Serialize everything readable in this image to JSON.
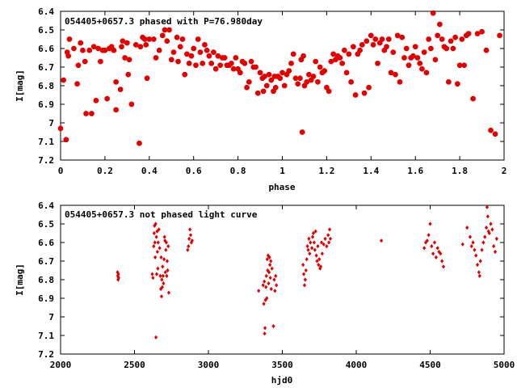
{
  "marker_color": "#e00000",
  "chart_data": [
    {
      "type": "scatter",
      "title": "054405+0657.3 phased with P=76.980day",
      "xlabel": "phase",
      "ylabel": "I[mag]",
      "xlim": [
        0,
        2
      ],
      "ylim": [
        7.2,
        6.4
      ],
      "y_inverted": true,
      "x_ticks": [
        "0",
        "0.2",
        "0.4",
        "0.6",
        "0.8",
        "1",
        "1.2",
        "1.4",
        "1.6",
        "1.8",
        "2"
      ],
      "y_ticks": [
        "6.4",
        "6.5",
        "6.6",
        "6.7",
        "6.8",
        "6.9",
        "7",
        "7.1",
        "7.2"
      ],
      "marker": "star",
      "points": [
        [
          0.0,
          7.03
        ],
        [
          0.013,
          6.77
        ],
        [
          0.025,
          7.09
        ],
        [
          0.03,
          6.62
        ],
        [
          0.035,
          6.64
        ],
        [
          0.04,
          6.55
        ],
        [
          0.06,
          6.6
        ],
        [
          0.075,
          6.79
        ],
        [
          0.08,
          6.69
        ],
        [
          0.09,
          6.57
        ],
        [
          0.1,
          6.61
        ],
        [
          0.11,
          6.67
        ],
        [
          0.115,
          6.95
        ],
        [
          0.13,
          6.61
        ],
        [
          0.14,
          6.95
        ],
        [
          0.15,
          6.59
        ],
        [
          0.16,
          6.88
        ],
        [
          0.17,
          6.6
        ],
        [
          0.18,
          6.67
        ],
        [
          0.19,
          6.61
        ],
        [
          0.2,
          6.61
        ],
        [
          0.21,
          6.87
        ],
        [
          0.22,
          6.6
        ],
        [
          0.23,
          6.59
        ],
        [
          0.24,
          6.61
        ],
        [
          0.25,
          6.78
        ],
        [
          0.25,
          6.93
        ],
        [
          0.27,
          6.82
        ],
        [
          0.275,
          6.59
        ],
        [
          0.28,
          6.56
        ],
        [
          0.29,
          6.65
        ],
        [
          0.3,
          6.57
        ],
        [
          0.305,
          6.74
        ],
        [
          0.31,
          6.66
        ],
        [
          0.32,
          6.9
        ],
        [
          0.34,
          6.58
        ],
        [
          0.355,
          7.11
        ],
        [
          0.36,
          6.59
        ],
        [
          0.37,
          6.54
        ],
        [
          0.38,
          6.55
        ],
        [
          0.385,
          6.58
        ],
        [
          0.39,
          6.76
        ],
        [
          0.4,
          6.55
        ],
        [
          0.42,
          6.55
        ],
        [
          0.43,
          6.65
        ],
        [
          0.445,
          6.61
        ],
        [
          0.46,
          6.53
        ],
        [
          0.47,
          6.5
        ],
        [
          0.48,
          6.56
        ],
        [
          0.49,
          6.5
        ],
        [
          0.5,
          6.66
        ],
        [
          0.51,
          6.62
        ],
        [
          0.525,
          6.54
        ],
        [
          0.53,
          6.67
        ],
        [
          0.54,
          6.59
        ],
        [
          0.55,
          6.55
        ],
        [
          0.56,
          6.74
        ],
        [
          0.57,
          6.63
        ],
        [
          0.58,
          6.68
        ],
        [
          0.59,
          6.64
        ],
        [
          0.6,
          6.6
        ],
        [
          0.61,
          6.69
        ],
        [
          0.62,
          6.55
        ],
        [
          0.63,
          6.62
        ],
        [
          0.64,
          6.68
        ],
        [
          0.65,
          6.58
        ],
        [
          0.66,
          6.61
        ],
        [
          0.67,
          6.64
        ],
        [
          0.68,
          6.68
        ],
        [
          0.69,
          6.62
        ],
        [
          0.7,
          6.71
        ],
        [
          0.71,
          6.64
        ],
        [
          0.72,
          6.69
        ],
        [
          0.73,
          6.65
        ],
        [
          0.74,
          6.65
        ],
        [
          0.75,
          6.69
        ],
        [
          0.76,
          6.69
        ],
        [
          0.77,
          6.68
        ],
        [
          0.78,
          6.71
        ],
        [
          0.79,
          6.65
        ],
        [
          0.8,
          6.71
        ],
        [
          0.81,
          6.73
        ],
        [
          0.82,
          6.67
        ],
        [
          0.83,
          6.68
        ],
        [
          0.84,
          6.81
        ],
        [
          0.85,
          6.78
        ],
        [
          0.86,
          6.67
        ],
        [
          0.87,
          6.7
        ],
        [
          0.88,
          6.7
        ],
        [
          0.89,
          6.84
        ],
        [
          0.9,
          6.73
        ],
        [
          0.91,
          6.76
        ],
        [
          0.915,
          6.83
        ],
        [
          0.92,
          6.75
        ],
        [
          0.93,
          6.8
        ],
        [
          0.94,
          6.74
        ],
        [
          0.95,
          6.77
        ],
        [
          0.96,
          6.83
        ],
        [
          0.965,
          6.75
        ],
        [
          0.97,
          6.81
        ],
        [
          0.98,
          6.75
        ],
        [
          0.99,
          6.76
        ],
        [
          1.0,
          6.73
        ],
        [
          1.01,
          6.8
        ],
        [
          1.02,
          6.74
        ],
        [
          1.03,
          6.72
        ],
        [
          1.04,
          6.68
        ],
        [
          1.05,
          6.63
        ],
        [
          1.06,
          6.76
        ],
        [
          1.07,
          6.79
        ],
        [
          1.08,
          6.76
        ],
        [
          1.085,
          6.66
        ],
        [
          1.09,
          7.05
        ],
        [
          1.095,
          6.64
        ],
        [
          1.1,
          6.8
        ],
        [
          1.11,
          6.78
        ],
        [
          1.12,
          6.74
        ],
        [
          1.13,
          6.77
        ],
        [
          1.14,
          6.75
        ],
        [
          1.15,
          6.67
        ],
        [
          1.16,
          6.78
        ],
        [
          1.17,
          6.7
        ],
        [
          1.18,
          6.73
        ],
        [
          1.19,
          6.72
        ],
        [
          1.2,
          6.81
        ],
        [
          1.21,
          6.83
        ],
        [
          1.22,
          6.67
        ],
        [
          1.23,
          6.63
        ],
        [
          1.24,
          6.66
        ],
        [
          1.25,
          6.64
        ],
        [
          1.26,
          6.65
        ],
        [
          1.27,
          6.68
        ],
        [
          1.28,
          6.61
        ],
        [
          1.29,
          6.73
        ],
        [
          1.3,
          6.63
        ],
        [
          1.31,
          6.78
        ],
        [
          1.32,
          6.59
        ],
        [
          1.33,
          6.85
        ],
        [
          1.34,
          6.63
        ],
        [
          1.35,
          6.61
        ],
        [
          1.36,
          6.58
        ],
        [
          1.37,
          6.84
        ],
        [
          1.38,
          6.56
        ],
        [
          1.39,
          6.81
        ],
        [
          1.4,
          6.53
        ],
        [
          1.41,
          6.58
        ],
        [
          1.42,
          6.55
        ],
        [
          1.43,
          6.68
        ],
        [
          1.44,
          6.57
        ],
        [
          1.45,
          6.55
        ],
        [
          1.46,
          6.61
        ],
        [
          1.47,
          6.59
        ],
        [
          1.48,
          6.55
        ],
        [
          1.49,
          6.73
        ],
        [
          1.5,
          6.62
        ],
        [
          1.51,
          6.74
        ],
        [
          1.52,
          6.53
        ],
        [
          1.53,
          6.78
        ],
        [
          1.54,
          6.54
        ],
        [
          1.55,
          6.65
        ],
        [
          1.56,
          6.6
        ],
        [
          1.57,
          6.69
        ],
        [
          1.58,
          6.65
        ],
        [
          1.59,
          6.64
        ],
        [
          1.6,
          6.59
        ],
        [
          1.61,
          6.65
        ],
        [
          1.62,
          6.68
        ],
        [
          1.63,
          6.71
        ],
        [
          1.64,
          6.62
        ],
        [
          1.65,
          6.73
        ],
        [
          1.66,
          6.55
        ],
        [
          1.67,
          6.6
        ],
        [
          1.68,
          6.41
        ],
        [
          1.69,
          6.66
        ],
        [
          1.7,
          6.53
        ],
        [
          1.71,
          6.47
        ],
        [
          1.72,
          6.55
        ],
        [
          1.73,
          6.59
        ],
        [
          1.74,
          6.6
        ],
        [
          1.75,
          6.78
        ],
        [
          1.76,
          6.56
        ],
        [
          1.77,
          6.6
        ],
        [
          1.78,
          6.54
        ],
        [
          1.79,
          6.79
        ],
        [
          1.8,
          6.69
        ],
        [
          1.81,
          6.55
        ],
        [
          1.82,
          6.69
        ],
        [
          1.83,
          6.53
        ],
        [
          1.84,
          6.52
        ],
        [
          1.86,
          6.87
        ],
        [
          1.88,
          6.52
        ],
        [
          1.9,
          6.51
        ],
        [
          1.92,
          6.61
        ],
        [
          1.94,
          7.04
        ],
        [
          1.96,
          7.06
        ],
        [
          1.98,
          6.53
        ]
      ]
    },
    {
      "type": "scatter",
      "title": "054405+0657.3 not phased light curve",
      "xlabel": "hjd0",
      "ylabel": "I[mag]",
      "xlim": [
        2000,
        5000
      ],
      "ylim": [
        7.2,
        6.4
      ],
      "y_inverted": true,
      "x_ticks": [
        "2000",
        "2500",
        "3000",
        "3500",
        "4000",
        "4500",
        "5000"
      ],
      "y_ticks": [
        "6.4",
        "6.5",
        "6.6",
        "6.7",
        "6.8",
        "6.9",
        "7",
        "7.1",
        "7.2"
      ],
      "marker": "diamond",
      "points": [
        [
          2385,
          6.76
        ],
        [
          2387,
          6.78
        ],
        [
          2389,
          6.8
        ],
        [
          2391,
          6.77
        ],
        [
          2393,
          6.79
        ],
        [
          2620,
          6.77
        ],
        [
          2625,
          6.79
        ],
        [
          2630,
          6.62
        ],
        [
          2633,
          6.55
        ],
        [
          2636,
          6.51
        ],
        [
          2638,
          6.6
        ],
        [
          2640,
          6.68
        ],
        [
          2643,
          6.5
        ],
        [
          2645,
          7.11
        ],
        [
          2648,
          6.57
        ],
        [
          2650,
          6.77
        ],
        [
          2653,
          6.54
        ],
        [
          2655,
          6.65
        ],
        [
          2658,
          6.74
        ],
        [
          2660,
          6.6
        ],
        [
          2665,
          6.53
        ],
        [
          2670,
          6.63
        ],
        [
          2675,
          6.78
        ],
        [
          2678,
          6.85
        ],
        [
          2680,
          6.68
        ],
        [
          2683,
          6.89
        ],
        [
          2685,
          6.8
        ],
        [
          2688,
          6.84
        ],
        [
          2690,
          6.73
        ],
        [
          2693,
          6.78
        ],
        [
          2696,
          6.82
        ],
        [
          2700,
          6.69
        ],
        [
          2703,
          6.57
        ],
        [
          2706,
          6.59
        ],
        [
          2709,
          6.76
        ],
        [
          2712,
          6.64
        ],
        [
          2715,
          6.6
        ],
        [
          2718,
          6.78
        ],
        [
          2721,
          6.7
        ],
        [
          2724,
          6.75
        ],
        [
          2728,
          6.62
        ],
        [
          2732,
          6.87
        ],
        [
          2860,
          6.64
        ],
        [
          2865,
          6.62
        ],
        [
          2870,
          6.58
        ],
        [
          2875,
          6.53
        ],
        [
          2880,
          6.56
        ],
        [
          2885,
          6.6
        ],
        [
          2890,
          6.59
        ],
        [
          3340,
          6.86
        ],
        [
          3370,
          6.83
        ],
        [
          3375,
          6.93
        ],
        [
          3378,
          6.81
        ],
        [
          3380,
          7.09
        ],
        [
          3383,
          7.06
        ],
        [
          3386,
          6.91
        ],
        [
          3389,
          6.84
        ],
        [
          3392,
          6.78
        ],
        [
          3395,
          6.9
        ],
        [
          3398,
          6.69
        ],
        [
          3401,
          6.75
        ],
        [
          3404,
          6.67
        ],
        [
          3407,
          6.82
        ],
        [
          3410,
          6.76
        ],
        [
          3413,
          6.68
        ],
        [
          3416,
          6.72
        ],
        [
          3419,
          6.79
        ],
        [
          3422,
          6.7
        ],
        [
          3425,
          6.85
        ],
        [
          3430,
          6.74
        ],
        [
          3440,
          7.05
        ],
        [
          3445,
          6.8
        ],
        [
          3450,
          6.86
        ],
        [
          3455,
          6.78
        ],
        [
          3460,
          6.83
        ],
        [
          3640,
          6.72
        ],
        [
          3645,
          6.77
        ],
        [
          3650,
          6.83
        ],
        [
          3655,
          6.8
        ],
        [
          3660,
          6.75
        ],
        [
          3665,
          6.69
        ],
        [
          3670,
          6.62
        ],
        [
          3675,
          6.64
        ],
        [
          3680,
          6.58
        ],
        [
          3685,
          6.66
        ],
        [
          3690,
          6.6
        ],
        [
          3700,
          6.63
        ],
        [
          3705,
          6.57
        ],
        [
          3710,
          6.55
        ],
        [
          3715,
          6.6
        ],
        [
          3720,
          6.64
        ],
        [
          3725,
          6.54
        ],
        [
          3730,
          6.67
        ],
        [
          3735,
          6.7
        ],
        [
          3740,
          6.62
        ],
        [
          3745,
          6.72
        ],
        [
          3750,
          6.69
        ],
        [
          3755,
          6.74
        ],
        [
          3760,
          6.73
        ],
        [
          3765,
          6.6
        ],
        [
          3770,
          6.66
        ],
        [
          3780,
          6.61
        ],
        [
          3790,
          6.58
        ],
        [
          3800,
          6.62
        ],
        [
          3810,
          6.56
        ],
        [
          3815,
          6.6
        ],
        [
          3820,
          6.53
        ],
        [
          3825,
          6.58
        ],
        [
          4170,
          6.59
        ],
        [
          4460,
          6.63
        ],
        [
          4470,
          6.6
        ],
        [
          4480,
          6.59
        ],
        [
          4490,
          6.56
        ],
        [
          4500,
          6.5
        ],
        [
          4510,
          6.62
        ],
        [
          4520,
          6.66
        ],
        [
          4530,
          6.6
        ],
        [
          4540,
          6.68
        ],
        [
          4550,
          6.63
        ],
        [
          4560,
          6.65
        ],
        [
          4570,
          6.66
        ],
        [
          4580,
          6.7
        ],
        [
          4590,
          6.73
        ],
        [
          4720,
          6.61
        ],
        [
          4750,
          6.52
        ],
        [
          4770,
          6.57
        ],
        [
          4780,
          6.62
        ],
        [
          4790,
          6.6
        ],
        [
          4800,
          6.64
        ],
        [
          4810,
          6.67
        ],
        [
          4820,
          6.72
        ],
        [
          4830,
          6.76
        ],
        [
          4835,
          6.78
        ],
        [
          4840,
          6.7
        ],
        [
          4850,
          6.64
        ],
        [
          4860,
          6.6
        ],
        [
          4870,
          6.57
        ],
        [
          4880,
          6.52
        ],
        [
          4885,
          6.41
        ],
        [
          4890,
          6.46
        ],
        [
          4895,
          6.54
        ],
        [
          4900,
          6.55
        ],
        [
          4910,
          6.5
        ],
        [
          4920,
          6.53
        ],
        [
          4930,
          6.62
        ],
        [
          4940,
          6.65
        ],
        [
          4950,
          6.58
        ]
      ]
    }
  ]
}
